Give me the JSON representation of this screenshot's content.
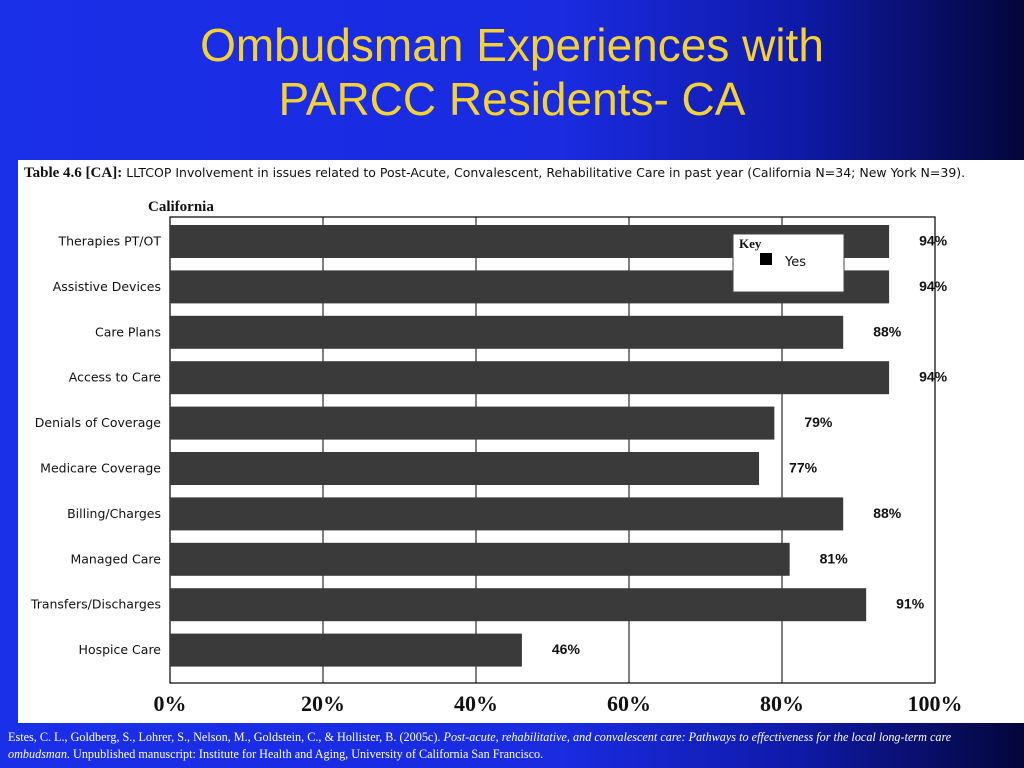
{
  "slide": {
    "title_line1": "Ombudsman Experiences with",
    "title_line2": "PARCC Residents- CA"
  },
  "table": {
    "label": "Table 4.6 [CA]:",
    "caption": "LLTCOP Involvement in issues related to Post-Acute, Convalescent, Rehabilitative Care in past year (California N=34; New York N=39)."
  },
  "chart_data": {
    "type": "bar",
    "orientation": "horizontal",
    "title": "California",
    "categories": [
      "Therapies PT/OT",
      "Assistive Devices",
      "Care Plans",
      "Access to Care",
      "Denials of Coverage",
      "Medicare Coverage",
      "Billing/Charges",
      "Managed Care",
      "Transfers/Discharges",
      "Hospice Care"
    ],
    "series": [
      {
        "name": "Yes",
        "values": [
          94,
          94,
          88,
          94,
          79,
          77,
          88,
          81,
          91,
          46
        ]
      }
    ],
    "data_labels": [
      "94%",
      "94%",
      "88%",
      "94%",
      "79%",
      "77%",
      "88%",
      "81%",
      "91%",
      "46%"
    ],
    "xlim": [
      0,
      100
    ],
    "x_ticks": [
      "0%",
      "20%",
      "40%",
      "60%",
      "80%",
      "100%"
    ],
    "grid": "vertical",
    "legend": {
      "title": "Key",
      "placement": "top-right"
    },
    "bar_color": "#3a3a3a"
  },
  "footer": {
    "text_plain": "Estes, C. L., Goldberg, S., Lohrer, S., Nelson, M., Goldstein, C., & Hollister, B. (2005c). ",
    "text_italic": "Post-acute, rehabilitative, and convalescent care: Pathways to effectiveness for the local long-term care ombudsman",
    "text_tail": ". Unpublished manuscript: Institute for Health and Aging, University of California San Francisco."
  }
}
